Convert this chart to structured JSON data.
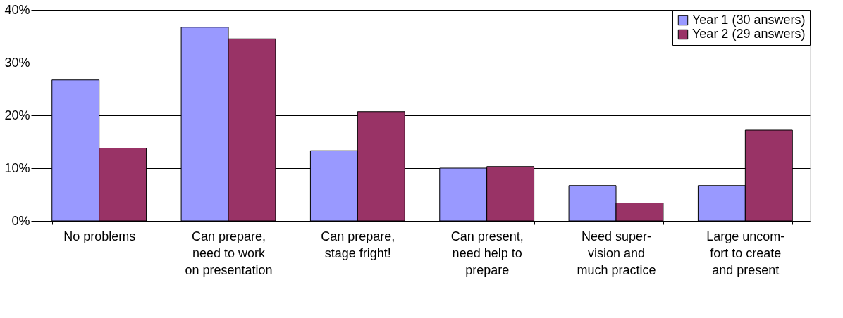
{
  "chart_data": {
    "type": "bar",
    "categories": [
      "No problems",
      "Can prepare,\nneed to work\non presentation",
      "Can prepare,\nstage fright!",
      "Can present,\nneed help to\nprepare",
      "Need super-\nvision and\nmuch practice",
      "Large uncom-\nfort to create\nand present"
    ],
    "series": [
      {
        "name": "Year 1 (30 answers)",
        "color": "#9999ff",
        "values": [
          26.7,
          36.7,
          13.3,
          10.0,
          6.7,
          6.7
        ]
      },
      {
        "name": "Year 2 (29 answers)",
        "color": "#993366",
        "values": [
          13.8,
          34.5,
          20.7,
          10.3,
          3.4,
          17.2
        ]
      }
    ],
    "ylim": [
      0,
      40
    ],
    "yticks": [
      {
        "value": 0,
        "label": "0%"
      },
      {
        "value": 10,
        "label": "10%"
      },
      {
        "value": 20,
        "label": "20%"
      },
      {
        "value": 30,
        "label": "30%"
      },
      {
        "value": 40,
        "label": "40%"
      }
    ],
    "grid": "y",
    "legend": "top right"
  }
}
